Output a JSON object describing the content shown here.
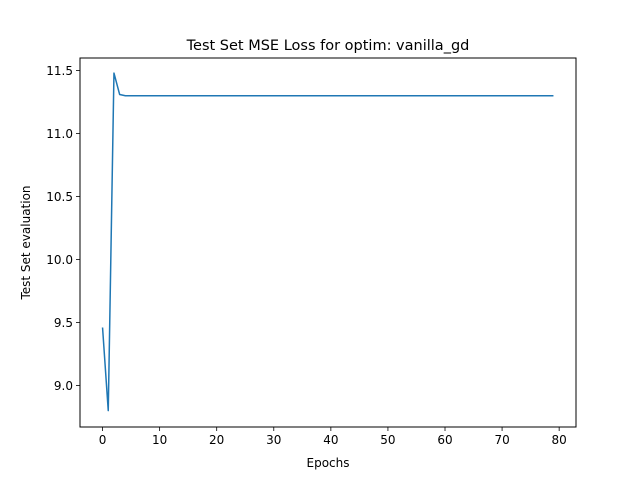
{
  "chart_data": {
    "type": "line",
    "title": "Test Set MSE Loss for optim: vanilla_gd",
    "xlabel": "Epochs",
    "ylabel": "Test Set evaluation",
    "xlim": [
      -3.95,
      82.95
    ],
    "ylim": [
      8.67,
      11.6
    ],
    "xticks": [
      0,
      10,
      20,
      30,
      40,
      50,
      60,
      70,
      80
    ],
    "yticks": [
      9.0,
      9.5,
      10.0,
      10.5,
      11.0,
      11.5
    ],
    "ytick_labels": [
      "9.0",
      "9.5",
      "10.0",
      "10.5",
      "11.0",
      "11.5"
    ],
    "grid": false,
    "line_color": "#1f77b4",
    "series": [
      {
        "x": [
          0,
          1,
          2,
          3,
          4,
          5,
          6,
          7,
          8,
          9,
          10,
          11,
          12,
          13,
          14,
          15,
          16,
          17,
          18,
          19,
          20,
          21,
          22,
          23,
          24,
          25,
          26,
          27,
          28,
          29,
          30,
          31,
          32,
          33,
          34,
          35,
          36,
          37,
          38,
          39,
          40,
          41,
          42,
          43,
          44,
          45,
          46,
          47,
          48,
          49,
          50,
          51,
          52,
          53,
          54,
          55,
          56,
          57,
          58,
          59,
          60,
          61,
          62,
          63,
          64,
          65,
          66,
          67,
          68,
          69,
          70,
          71,
          72,
          73,
          74,
          75,
          76,
          77,
          78,
          79
        ],
        "values": [
          9.46,
          8.8,
          11.48,
          11.31,
          11.3,
          11.3,
          11.3,
          11.3,
          11.3,
          11.3,
          11.3,
          11.3,
          11.3,
          11.3,
          11.3,
          11.3,
          11.3,
          11.3,
          11.3,
          11.3,
          11.3,
          11.3,
          11.3,
          11.3,
          11.3,
          11.3,
          11.3,
          11.3,
          11.3,
          11.3,
          11.3,
          11.3,
          11.3,
          11.3,
          11.3,
          11.3,
          11.3,
          11.3,
          11.3,
          11.3,
          11.3,
          11.3,
          11.3,
          11.3,
          11.3,
          11.3,
          11.3,
          11.3,
          11.3,
          11.3,
          11.3,
          11.3,
          11.3,
          11.3,
          11.3,
          11.3,
          11.3,
          11.3,
          11.3,
          11.3,
          11.3,
          11.3,
          11.3,
          11.3,
          11.3,
          11.3,
          11.3,
          11.3,
          11.3,
          11.3,
          11.3,
          11.3,
          11.3,
          11.3,
          11.3,
          11.3,
          11.3,
          11.3,
          11.3,
          11.3
        ]
      }
    ]
  }
}
